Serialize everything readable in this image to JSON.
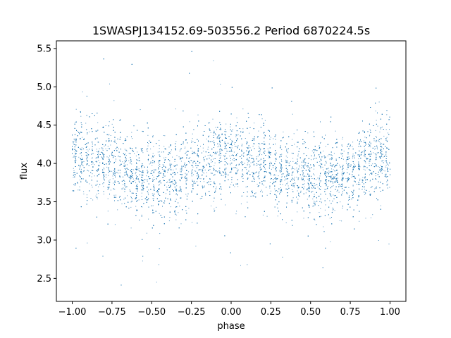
{
  "chart_data": {
    "type": "scatter",
    "title": "1SWASPJ134152.69-503556.2 Period 6870224.5s",
    "xlabel": "phase",
    "ylabel": "flux",
    "xlim": [
      -1.1,
      1.1
    ],
    "ylim": [
      2.2,
      5.6
    ],
    "x_ticks": [
      -1.0,
      -0.75,
      -0.5,
      -0.25,
      0.0,
      0.25,
      0.5,
      0.75,
      1.0
    ],
    "x_tick_labels": [
      "−1.00",
      "−0.75",
      "−0.50",
      "−0.25",
      "0.00",
      "0.25",
      "0.50",
      "0.75",
      "1.00"
    ],
    "y_ticks": [
      2.5,
      3.0,
      3.5,
      4.0,
      4.5,
      5.0,
      5.5
    ],
    "y_tick_labels": [
      "2.5",
      "3.0",
      "3.5",
      "4.0",
      "4.5",
      "5.0",
      "5.5"
    ],
    "grid": false,
    "legend": "none",
    "marker_color": "#1f77b4",
    "phase_range": [
      -1.0,
      1.0
    ],
    "folded_light_curve": {
      "phase_knots": [
        -1.0,
        -0.9,
        -0.75,
        -0.6,
        -0.5,
        -0.45,
        -0.35,
        -0.25,
        -0.15,
        -0.05,
        0.0,
        0.1,
        0.25,
        0.4,
        0.5,
        0.55,
        0.65,
        0.75,
        0.85,
        0.95,
        1.0
      ],
      "mean_flux": [
        4.1,
        4.05,
        3.95,
        3.85,
        3.8,
        3.78,
        3.82,
        3.9,
        4.0,
        4.1,
        4.1,
        4.05,
        3.95,
        3.85,
        3.8,
        3.78,
        3.82,
        3.9,
        4.0,
        4.1,
        4.1
      ],
      "scatter_sigma": 0.25,
      "approx_point_count": 9000
    }
  }
}
